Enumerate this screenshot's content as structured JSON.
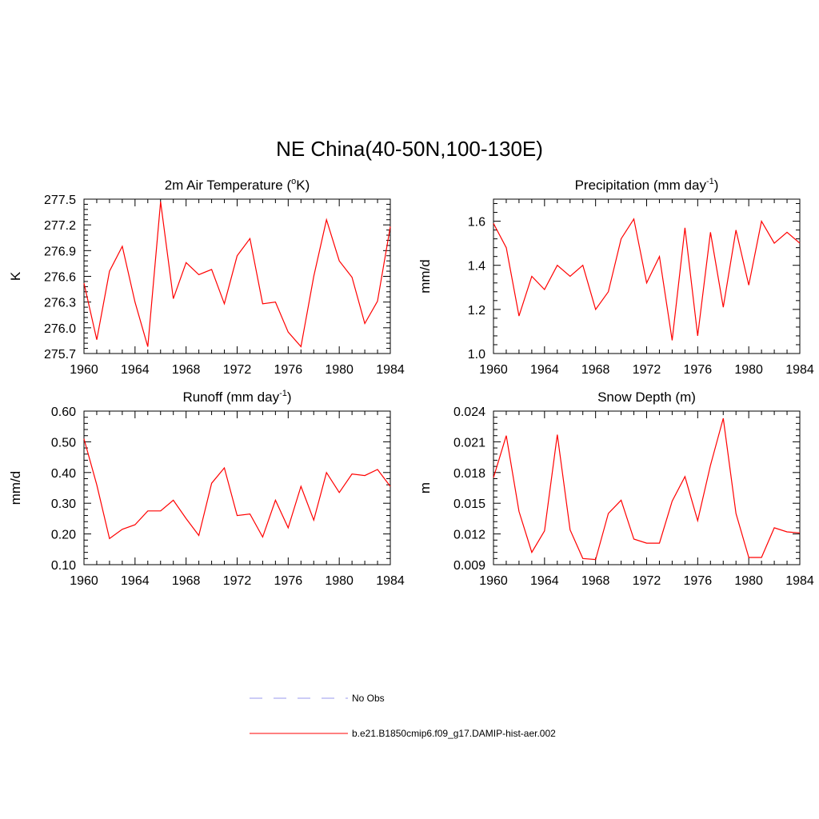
{
  "figure": {
    "title": "NE China(40-50N,100-130E)"
  },
  "legend": {
    "entries": [
      {
        "label": "No Obs",
        "color": "#9999ee",
        "dash": true
      },
      {
        "label": "b.e21.B1850cmip6.f09_g17.DAMIP-hist-aer.002",
        "color": "#ff0000",
        "dash": false
      }
    ]
  },
  "chart_data": [
    {
      "type": "line",
      "title": "2m Air Temperature (",
      "title_sup": "o",
      "title_after": "K)",
      "ylabel": "K",
      "xlim": [
        1960,
        1984
      ],
      "ylim": [
        275.7,
        277.5
      ],
      "xticks": [
        1960,
        1964,
        1968,
        1972,
        1976,
        1980,
        1984
      ],
      "yticks": [
        "275.7",
        "276.0",
        "276.3",
        "276.6",
        "276.9",
        "277.2",
        "277.5"
      ],
      "series": [
        {
          "color": "#ff0000",
          "x": [
            1960,
            1961,
            1962,
            1963,
            1964,
            1965,
            1966,
            1967,
            1968,
            1969,
            1970,
            1971,
            1972,
            1973,
            1974,
            1975,
            1976,
            1977,
            1978,
            1979,
            1980,
            1981,
            1982,
            1983,
            1984
          ],
          "y": [
            276.52,
            275.86,
            276.66,
            276.95,
            276.3,
            275.78,
            277.47,
            276.34,
            276.76,
            276.62,
            276.68,
            276.28,
            276.84,
            277.04,
            276.28,
            276.3,
            275.95,
            275.78,
            276.6,
            277.26,
            276.78,
            276.59,
            276.05,
            276.31,
            277.18
          ]
        }
      ]
    },
    {
      "type": "line",
      "title": "Precipitation (mm day",
      "title_sup": "-1",
      "title_after": ")",
      "ylabel": "mm/d",
      "xlim": [
        1960,
        1984
      ],
      "ylim": [
        1.0,
        1.7
      ],
      "xticks": [
        1960,
        1964,
        1968,
        1972,
        1976,
        1980,
        1984
      ],
      "yticks": [
        "1.0",
        "1.2",
        "1.4",
        "1.6"
      ],
      "series": [
        {
          "color": "#ff0000",
          "x": [
            1960,
            1961,
            1962,
            1963,
            1964,
            1965,
            1966,
            1967,
            1968,
            1969,
            1970,
            1971,
            1972,
            1973,
            1974,
            1975,
            1976,
            1977,
            1978,
            1979,
            1980,
            1981,
            1982,
            1983,
            1984
          ],
          "y": [
            1.59,
            1.48,
            1.17,
            1.35,
            1.29,
            1.4,
            1.35,
            1.4,
            1.2,
            1.28,
            1.52,
            1.61,
            1.32,
            1.44,
            1.06,
            1.57,
            1.08,
            1.55,
            1.21,
            1.56,
            1.31,
            1.6,
            1.5,
            1.55,
            1.5
          ]
        }
      ]
    },
    {
      "type": "line",
      "title": "Runoff (mm day",
      "title_sup": "-1",
      "title_after": ")",
      "ylabel": "mm/d",
      "xlim": [
        1960,
        1984
      ],
      "ylim": [
        0.1,
        0.6
      ],
      "xticks": [
        1960,
        1964,
        1968,
        1972,
        1976,
        1980,
        1984
      ],
      "yticks": [
        "0.10",
        "0.20",
        "0.30",
        "0.40",
        "0.50",
        "0.60"
      ],
      "series": [
        {
          "color": "#ff0000",
          "x": [
            1960,
            1961,
            1962,
            1963,
            1964,
            1965,
            1966,
            1967,
            1968,
            1969,
            1970,
            1971,
            1972,
            1973,
            1974,
            1975,
            1976,
            1977,
            1978,
            1979,
            1980,
            1981,
            1982,
            1983,
            1984
          ],
          "y": [
            0.51,
            0.36,
            0.185,
            0.215,
            0.23,
            0.275,
            0.275,
            0.31,
            0.25,
            0.195,
            0.365,
            0.415,
            0.26,
            0.265,
            0.19,
            0.31,
            0.22,
            0.355,
            0.245,
            0.4,
            0.335,
            0.395,
            0.39,
            0.41,
            0.355
          ]
        }
      ]
    },
    {
      "type": "line",
      "title": "Snow Depth (m)",
      "title_sup": "",
      "title_after": "",
      "ylabel": "m",
      "xlim": [
        1960,
        1984
      ],
      "ylim": [
        0.009,
        0.024
      ],
      "xticks": [
        1960,
        1964,
        1968,
        1972,
        1976,
        1980,
        1984
      ],
      "yticks": [
        "0.009",
        "0.012",
        "0.015",
        "0.018",
        "0.021",
        "0.024"
      ],
      "series": [
        {
          "color": "#ff0000",
          "x": [
            1960,
            1961,
            1962,
            1963,
            1964,
            1965,
            1966,
            1967,
            1968,
            1969,
            1970,
            1971,
            1972,
            1973,
            1974,
            1975,
            1976,
            1977,
            1978,
            1979,
            1980,
            1981,
            1982,
            1983,
            1984
          ],
          "y": [
            0.0175,
            0.0216,
            0.0142,
            0.0102,
            0.0123,
            0.0217,
            0.0124,
            0.0096,
            0.0095,
            0.014,
            0.0153,
            0.0115,
            0.0111,
            0.0111,
            0.0152,
            0.0176,
            0.0133,
            0.0187,
            0.0233,
            0.014,
            0.0097,
            0.0097,
            0.0126,
            0.0122,
            0.0121
          ]
        }
      ]
    }
  ]
}
